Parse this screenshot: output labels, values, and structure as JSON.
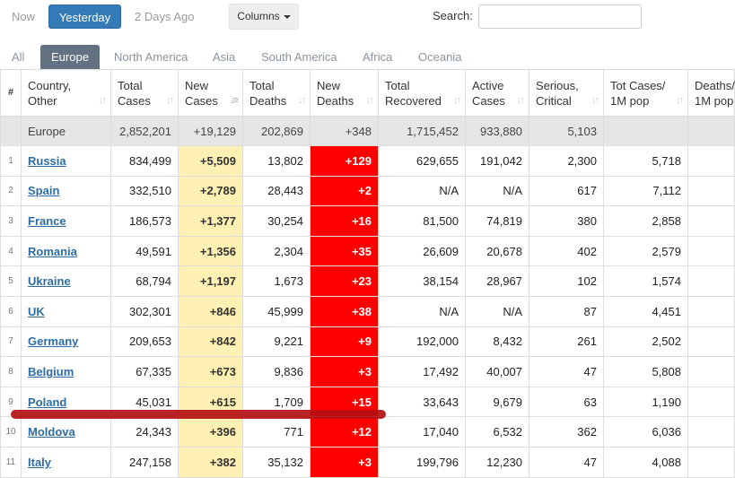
{
  "toolbar": {
    "now": "Now",
    "yesterday": "Yesterday",
    "two_days_ago": "2 Days Ago",
    "columns": "Columns",
    "search_label": "Search:",
    "search_value": ""
  },
  "tabs": [
    "All",
    "Europe",
    "North America",
    "Asia",
    "South America",
    "Africa",
    "Oceania"
  ],
  "active_tab": "Europe",
  "headers": {
    "num": "#",
    "country": [
      "Country,",
      "Other"
    ],
    "total_cases": [
      "Total",
      "Cases"
    ],
    "new_cases": [
      "New",
      "Cases"
    ],
    "total_deaths": [
      "Total",
      "Deaths"
    ],
    "new_deaths": [
      "New",
      "Deaths"
    ],
    "total_recovered": [
      "Total",
      "Recovered"
    ],
    "active_cases": [
      "Active",
      "Cases"
    ],
    "serious": [
      "Serious,",
      "Critical"
    ],
    "tot_cases_1m": [
      "Tot Cases/",
      "1M pop"
    ],
    "deaths_1m": [
      "Deaths/",
      "1M pop"
    ]
  },
  "total_row": {
    "country": "Europe",
    "total_cases": "2,852,201",
    "new_cases": "+19,129",
    "total_deaths": "202,869",
    "new_deaths": "+348",
    "total_recovered": "1,715,452",
    "active_cases": "933,880",
    "serious": "5,103",
    "tot_cases_1m": "",
    "deaths_1m": ""
  },
  "rows": [
    {
      "idx": "1",
      "country": "Russia",
      "total_cases": "834,499",
      "new_cases": "+5,509",
      "total_deaths": "13,802",
      "new_deaths": "+129",
      "total_recovered": "629,655",
      "active_cases": "191,042",
      "serious": "2,300",
      "tot_cases_1m": "5,718",
      "deaths_1m": ""
    },
    {
      "idx": "2",
      "country": "Spain",
      "total_cases": "332,510",
      "new_cases": "+2,789",
      "total_deaths": "28,443",
      "new_deaths": "+2",
      "total_recovered": "N/A",
      "active_cases": "N/A",
      "serious": "617",
      "tot_cases_1m": "7,112",
      "deaths_1m": ""
    },
    {
      "idx": "3",
      "country": "France",
      "total_cases": "186,573",
      "new_cases": "+1,377",
      "total_deaths": "30,254",
      "new_deaths": "+16",
      "total_recovered": "81,500",
      "active_cases": "74,819",
      "serious": "380",
      "tot_cases_1m": "2,858",
      "deaths_1m": ""
    },
    {
      "idx": "4",
      "country": "Romania",
      "total_cases": "49,591",
      "new_cases": "+1,356",
      "total_deaths": "2,304",
      "new_deaths": "+35",
      "total_recovered": "26,609",
      "active_cases": "20,678",
      "serious": "402",
      "tot_cases_1m": "2,579",
      "deaths_1m": ""
    },
    {
      "idx": "5",
      "country": "Ukraine",
      "total_cases": "68,794",
      "new_cases": "+1,197",
      "total_deaths": "1,673",
      "new_deaths": "+23",
      "total_recovered": "38,154",
      "active_cases": "28,967",
      "serious": "102",
      "tot_cases_1m": "1,574",
      "deaths_1m": ""
    },
    {
      "idx": "6",
      "country": "UK",
      "total_cases": "302,301",
      "new_cases": "+846",
      "total_deaths": "45,999",
      "new_deaths": "+38",
      "total_recovered": "N/A",
      "active_cases": "N/A",
      "serious": "87",
      "tot_cases_1m": "4,451",
      "deaths_1m": ""
    },
    {
      "idx": "7",
      "country": "Germany",
      "total_cases": "209,653",
      "new_cases": "+842",
      "total_deaths": "9,221",
      "new_deaths": "+9",
      "total_recovered": "192,000",
      "active_cases": "8,432",
      "serious": "261",
      "tot_cases_1m": "2,502",
      "deaths_1m": ""
    },
    {
      "idx": "8",
      "country": "Belgium",
      "total_cases": "67,335",
      "new_cases": "+673",
      "total_deaths": "9,836",
      "new_deaths": "+3",
      "total_recovered": "17,492",
      "active_cases": "40,007",
      "serious": "47",
      "tot_cases_1m": "5,808",
      "deaths_1m": ""
    },
    {
      "idx": "9",
      "country": "Poland",
      "total_cases": "45,031",
      "new_cases": "+615",
      "total_deaths": "1,709",
      "new_deaths": "+15",
      "total_recovered": "33,643",
      "active_cases": "9,679",
      "serious": "63",
      "tot_cases_1m": "1,190",
      "deaths_1m": ""
    },
    {
      "idx": "10",
      "country": "Moldova",
      "total_cases": "24,343",
      "new_cases": "+396",
      "total_deaths": "771",
      "new_deaths": "+12",
      "total_recovered": "17,040",
      "active_cases": "6,532",
      "serious": "362",
      "tot_cases_1m": "6,036",
      "deaths_1m": ""
    },
    {
      "idx": "11",
      "country": "Italy",
      "total_cases": "247,158",
      "new_cases": "+382",
      "total_deaths": "35,132",
      "new_deaths": "+3",
      "total_recovered": "199,796",
      "active_cases": "12,230",
      "serious": "47",
      "tot_cases_1m": "4,088",
      "deaths_1m": ""
    }
  ],
  "colors": {
    "accent": "#337ab7",
    "active_tab": "#637282",
    "new_cases_bg": "#fff0b3",
    "new_deaths_bg": "#ff0000",
    "total_row_bg": "#e6e6e6",
    "annotation_line": "#b50f12"
  }
}
